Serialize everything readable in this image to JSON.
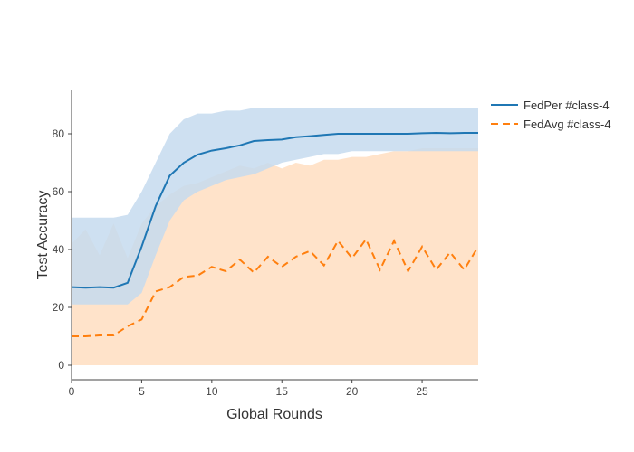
{
  "chart_data": {
    "type": "line",
    "xlabel": "Global Rounds",
    "ylabel": "Test Accuracy",
    "xlim": [
      0,
      29
    ],
    "ylim": [
      -5,
      95
    ],
    "xticks": [
      0,
      5,
      10,
      15,
      20,
      25
    ],
    "yticks": [
      0,
      20,
      40,
      60,
      80
    ],
    "grid": false,
    "legend_position": "top-right",
    "x": [
      0,
      1,
      2,
      3,
      4,
      5,
      6,
      7,
      8,
      9,
      10,
      11,
      12,
      13,
      14,
      15,
      16,
      17,
      18,
      19,
      20,
      21,
      22,
      23,
      24,
      25,
      26,
      27,
      28,
      29
    ],
    "series": [
      {
        "name": "FedPer #class-4",
        "color": "#1f77b4",
        "dash": "solid",
        "band_color": "#c6dbef",
        "values": [
          27.0,
          26.8,
          27.0,
          26.8,
          28.5,
          41.0,
          55.0,
          65.5,
          70.0,
          72.8,
          74.2,
          75.0,
          76.0,
          77.5,
          77.8,
          78.0,
          78.8,
          79.2,
          79.6,
          80.0,
          80.0,
          80.0,
          80.0,
          80.0,
          80.0,
          80.2,
          80.3,
          80.2,
          80.3,
          80.3
        ],
        "upper": [
          51,
          51,
          51,
          51,
          52,
          60,
          70,
          80,
          85,
          87,
          87,
          88,
          88,
          89,
          89,
          89,
          89,
          89,
          89,
          89,
          89,
          89,
          89,
          89,
          89,
          89,
          89,
          89,
          89,
          89
        ],
        "lower": [
          21,
          21,
          21,
          21,
          21,
          25,
          38,
          50,
          57,
          60,
          62,
          64,
          65,
          66,
          68,
          70,
          71,
          72,
          73,
          73,
          74,
          74,
          74,
          74,
          74,
          74,
          74,
          74,
          74,
          74
        ]
      },
      {
        "name": "FedAvg #class-4",
        "color": "#ff7f0e",
        "dash": "dash",
        "band_color": "#ffe0c4",
        "values": [
          10.0,
          10.0,
          10.3,
          10.3,
          13.5,
          15.8,
          25.5,
          27.0,
          30.5,
          31.0,
          34.0,
          32.5,
          36.5,
          32.0,
          37.5,
          34.0,
          37.5,
          39.5,
          34.5,
          43.0,
          37.0,
          43.5,
          33.0,
          43.0,
          32.5,
          41.0,
          33.0,
          39.0,
          33.0,
          41.0
        ],
        "upper": [
          42,
          47,
          38,
          49,
          37,
          49,
          55,
          59,
          62,
          63,
          65,
          67,
          69,
          68,
          70,
          68,
          70,
          69,
          71,
          71,
          72,
          72,
          73,
          74,
          74,
          75,
          75,
          75,
          75,
          75
        ],
        "lower": [
          0,
          0,
          0,
          0,
          0,
          0,
          0,
          0,
          0,
          0,
          0,
          0,
          0,
          0,
          0,
          0,
          0,
          0,
          0,
          0,
          0,
          0,
          0,
          0,
          0,
          0,
          0,
          0,
          0,
          0
        ]
      }
    ]
  }
}
